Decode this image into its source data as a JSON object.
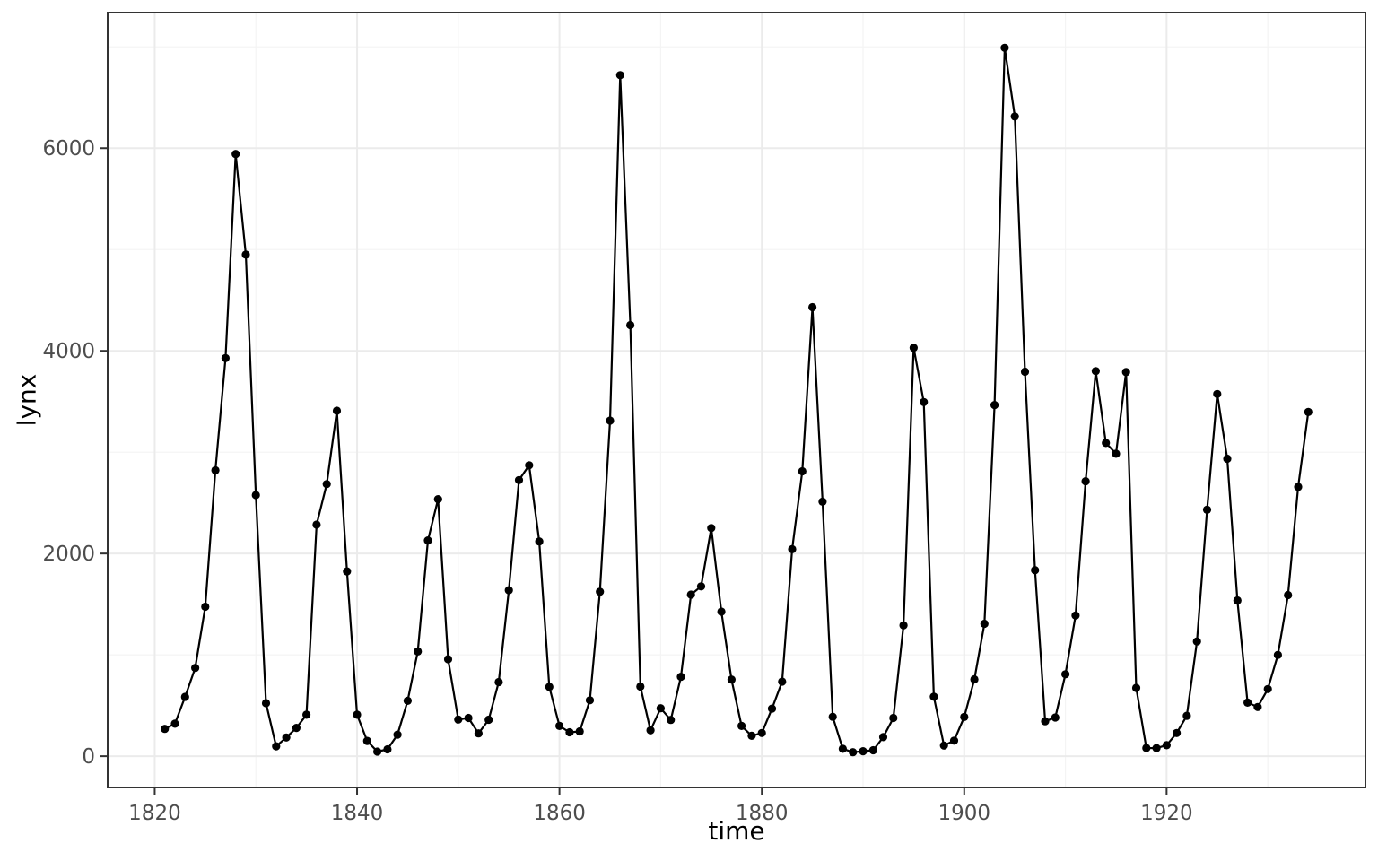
{
  "chart_data": {
    "type": "line",
    "title": "",
    "xlabel": "time",
    "ylabel": "lynx",
    "x_range": {
      "start": 1821,
      "end": 1934,
      "step": 1
    },
    "series": [
      {
        "name": "lynx",
        "values": [
          269,
          321,
          585,
          871,
          1475,
          2821,
          3928,
          5943,
          4950,
          2577,
          523,
          98,
          184,
          279,
          409,
          2285,
          2685,
          3409,
          1824,
          409,
          151,
          45,
          68,
          213,
          546,
          1033,
          2129,
          2536,
          957,
          361,
          377,
          225,
          360,
          731,
          1638,
          2725,
          2871,
          2119,
          684,
          299,
          236,
          245,
          552,
          1623,
          3311,
          6721,
          4254,
          687,
          255,
          473,
          358,
          784,
          1594,
          1676,
          2251,
          1426,
          756,
          299,
          201,
          229,
          469,
          736,
          2042,
          2811,
          4431,
          2511,
          389,
          73,
          39,
          49,
          59,
          188,
          377,
          1292,
          4031,
          3495,
          587,
          105,
          153,
          387,
          758,
          1307,
          3465,
          6991,
          6313,
          3794,
          1836,
          345,
          382,
          808,
          1388,
          2713,
          3800,
          3091,
          2985,
          3790,
          674,
          81,
          80,
          108,
          229,
          399,
          1132,
          2432,
          3574,
          2935,
          1537,
          529,
          485,
          662,
          1000,
          1590,
          2657,
          3396
        ]
      }
    ],
    "x_ticks": [
      1820,
      1840,
      1860,
      1880,
      1900,
      1920
    ],
    "y_ticks": [
      0,
      2000,
      4000,
      6000
    ],
    "x_minor_ticks": [
      1830,
      1850,
      1870,
      1890,
      1910,
      1930
    ],
    "y_minor_ticks": [
      1000,
      3000,
      5000,
      7000
    ],
    "xlim": [
      1815.35,
      1939.65
    ],
    "ylim": [
      -308.6,
      7338.6
    ],
    "grid": "major-and-minor",
    "legend": "none",
    "marker": "filled-circle",
    "style": {
      "background": "#ffffff",
      "panel_background": "#ffffff",
      "grid_major_color": "#ebebeb",
      "grid_minor_color": "#f4f4f4",
      "panel_border_color": "#333333",
      "line_color": "#000000",
      "point_color": "#000000",
      "tick_label_color": "#4d4d4d",
      "axis_title_color": "#000000"
    }
  }
}
